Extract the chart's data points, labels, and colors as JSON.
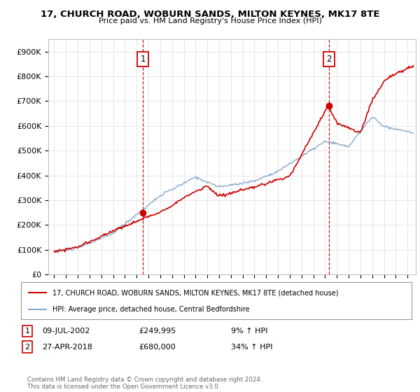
{
  "title": "17, CHURCH ROAD, WOBURN SANDS, MILTON KEYNES, MK17 8TE",
  "subtitle": "Price paid vs. HM Land Registry's House Price Index (HPI)",
  "ylim": [
    0,
    950000
  ],
  "xlim_start": 1994.5,
  "xlim_end": 2025.7,
  "sale1_x": 2002.52,
  "sale1_y": 249995,
  "sale2_x": 2018.32,
  "sale2_y": 680000,
  "line_color_property": "#cc0000",
  "line_color_hpi": "#88aacc",
  "dashed_color": "#cc0000",
  "legend_label_property": "17, CHURCH ROAD, WOBURN SANDS, MILTON KEYNES, MK17 8TE (detached house)",
  "legend_label_hpi": "HPI: Average price, detached house, Central Bedfordshire",
  "footer": "Contains HM Land Registry data © Crown copyright and database right 2024.\nThis data is licensed under the Open Government Licence v3.0.",
  "background_color": "#ffffff",
  "grid_color": "#dddddd",
  "sale1_date": "09-JUL-2002",
  "sale1_price": "£249,995",
  "sale1_hpi": "9% ↑ HPI",
  "sale2_date": "27-APR-2018",
  "sale2_price": "£680,000",
  "sale2_hpi": "34% ↑ HPI"
}
